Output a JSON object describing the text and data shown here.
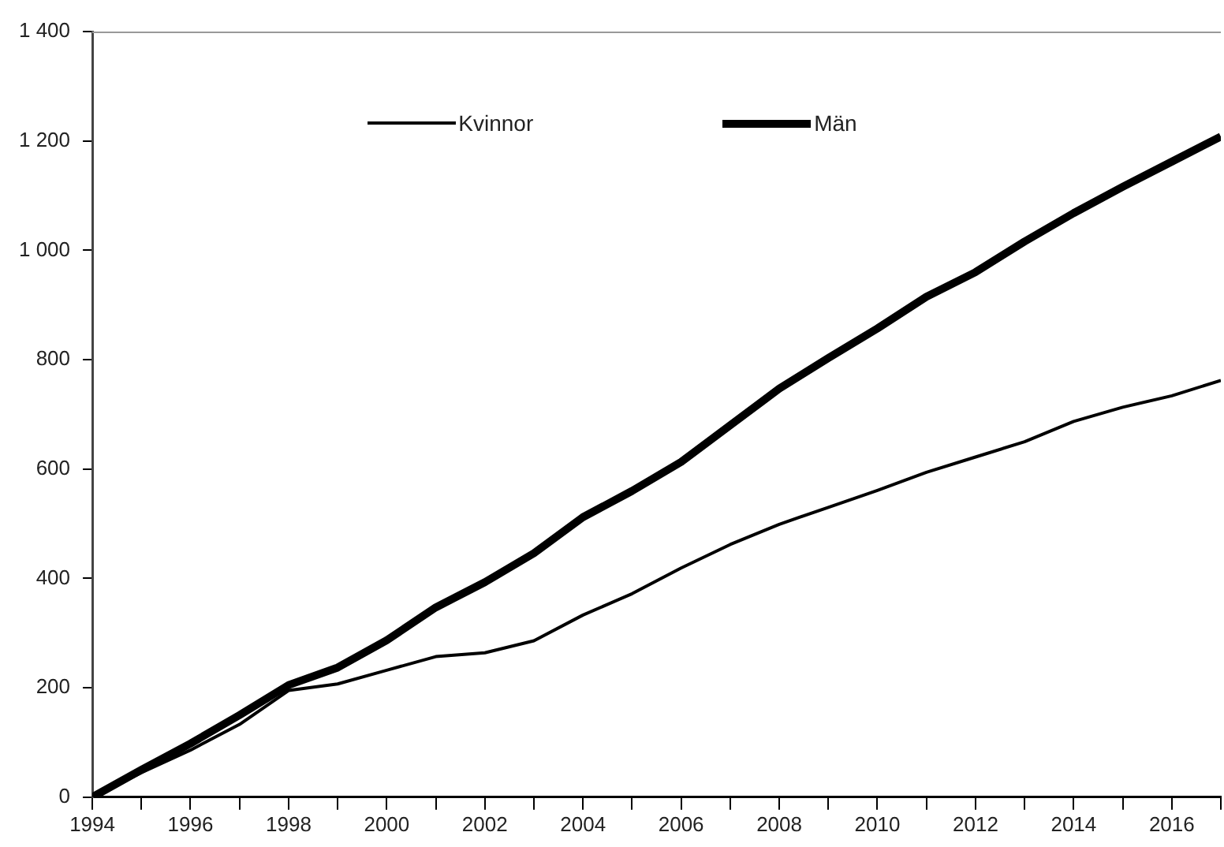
{
  "chart_data": {
    "type": "line",
    "x": [
      1994,
      1995,
      1996,
      1997,
      1998,
      1999,
      2000,
      2001,
      2002,
      2003,
      2004,
      2005,
      2006,
      2007,
      2008,
      2009,
      2010,
      2011,
      2012,
      2013,
      2014,
      2015,
      2016,
      2017
    ],
    "series": [
      {
        "name": "Kvinnor",
        "color": "#000000",
        "values": [
          0,
          45,
          86,
          133,
          195,
          207,
          232,
          257,
          264,
          286,
          333,
          372,
          419,
          462,
          499,
          530,
          561,
          594,
          622,
          650,
          687,
          713,
          734,
          762
        ]
      },
      {
        "name": "Män",
        "color": "#000000",
        "values": [
          0,
          50,
          98,
          150,
          205,
          237,
          287,
          347,
          393,
          446,
          512,
          560,
          613,
          680,
          747,
          803,
          857,
          915,
          960,
          1016,
          1068,
          1116,
          1162,
          1208
        ]
      }
    ],
    "xlim": [
      1994,
      2017
    ],
    "xticks": [
      1994,
      {
        "value": 1995,
        "label": null
      },
      1996,
      {
        "value": 1997,
        "label": null
      },
      1998,
      {
        "value": 1999,
        "label": null
      },
      2000,
      {
        "value": 2001,
        "label": null
      },
      2002,
      {
        "value": 2003,
        "label": null
      },
      2004,
      {
        "value": 2005,
        "label": null
      },
      2006,
      {
        "value": 2007,
        "label": null
      },
      2008,
      {
        "value": 2009,
        "label": null
      },
      2010,
      {
        "value": 2011,
        "label": null
      },
      2012,
      {
        "value": 2013,
        "label": null
      },
      2014,
      {
        "value": 2015,
        "label": null
      },
      2016,
      {
        "value": 2017,
        "label": null
      }
    ],
    "ylim": [
      0,
      1400
    ],
    "yticks": [
      0,
      200,
      400,
      600,
      800,
      {
        "value": 1000,
        "label": "1 000"
      },
      {
        "value": 1200,
        "label": "1 200"
      },
      {
        "value": 1400,
        "label": "1 400"
      }
    ],
    "grid": false,
    "legend": "top",
    "marker": "none",
    "line_style": "solid"
  }
}
